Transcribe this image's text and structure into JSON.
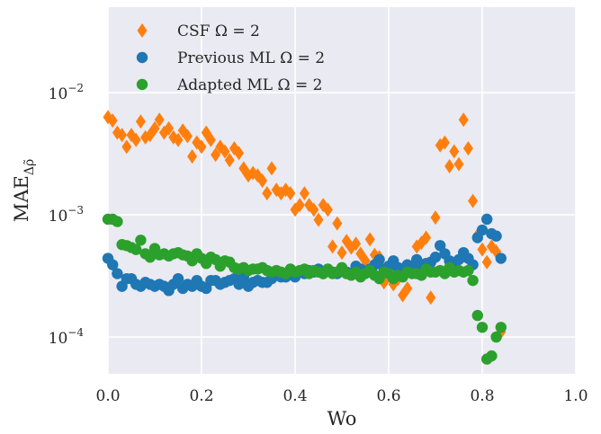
{
  "chart_data": {
    "type": "scatter",
    "xlabel": "Wo",
    "ylabel": "MAE",
    "ylabel_subscript": "Δρ̃",
    "xlim": [
      0,
      1.0
    ],
    "ylim": [
      5e-05,
      0.05
    ],
    "yscale": "log",
    "grid": true,
    "legend_position": "top-left",
    "x_ticks": [
      {
        "value": 0.0,
        "label": "0.0"
      },
      {
        "value": 0.2,
        "label": "0.2"
      },
      {
        "value": 0.4,
        "label": "0.4"
      },
      {
        "value": 0.6,
        "label": "0.6"
      },
      {
        "value": 0.8,
        "label": "0.8"
      },
      {
        "value": 1.0,
        "label": "1.0"
      }
    ],
    "y_ticks": [
      {
        "value": 0.01,
        "base": "10",
        "exp": "−2"
      },
      {
        "value": 0.001,
        "base": "10",
        "exp": "−3"
      },
      {
        "value": 0.0001,
        "base": "10",
        "exp": "−4"
      }
    ],
    "series": [
      {
        "name": "CSF Ω = 2",
        "marker": "diamond",
        "color": "#ff7f0e",
        "x": [
          0.0,
          0.01,
          0.02,
          0.03,
          0.04,
          0.05,
          0.06,
          0.07,
          0.08,
          0.09,
          0.1,
          0.11,
          0.12,
          0.13,
          0.14,
          0.15,
          0.16,
          0.17,
          0.18,
          0.19,
          0.2,
          0.21,
          0.22,
          0.23,
          0.24,
          0.25,
          0.26,
          0.27,
          0.28,
          0.29,
          0.3,
          0.31,
          0.32,
          0.33,
          0.34,
          0.35,
          0.36,
          0.37,
          0.38,
          0.39,
          0.4,
          0.41,
          0.42,
          0.43,
          0.44,
          0.45,
          0.46,
          0.47,
          0.48,
          0.49,
          0.5,
          0.51,
          0.52,
          0.53,
          0.54,
          0.55,
          0.56,
          0.57,
          0.58,
          0.59,
          0.6,
          0.61,
          0.62,
          0.63,
          0.64,
          0.65,
          0.66,
          0.67,
          0.68,
          0.69,
          0.7,
          0.71,
          0.72,
          0.73,
          0.74,
          0.75,
          0.76,
          0.77,
          0.78,
          0.79,
          0.8,
          0.81,
          0.82,
          0.83,
          0.84
        ],
        "y": [
          0.0063,
          0.0059,
          0.0047,
          0.0045,
          0.0036,
          0.0045,
          0.0041,
          0.0058,
          0.0043,
          0.0045,
          0.0051,
          0.006,
          0.0047,
          0.0051,
          0.0043,
          0.0041,
          0.0049,
          0.0044,
          0.003,
          0.0039,
          0.0036,
          0.0047,
          0.0041,
          0.0031,
          0.0036,
          0.0033,
          0.0028,
          0.0035,
          0.0032,
          0.0024,
          0.0021,
          0.0022,
          0.0021,
          0.0019,
          0.0015,
          0.0024,
          0.0016,
          0.0015,
          0.0016,
          0.0015,
          0.0011,
          0.0012,
          0.0015,
          0.0012,
          0.0011,
          0.00091,
          0.0012,
          0.0011,
          0.00055,
          0.00085,
          0.00049,
          0.00061,
          0.00054,
          0.00058,
          0.00048,
          0.00042,
          0.00063,
          0.00047,
          0.00045,
          0.00028,
          0.00032,
          0.00027,
          0.0003,
          0.00022,
          0.00025,
          0.00035,
          0.00055,
          0.00059,
          0.00065,
          0.00021,
          0.00095,
          0.0037,
          0.0039,
          0.0025,
          0.0033,
          0.0026,
          0.006,
          0.0035,
          0.0013,
          0.00068,
          0.00052,
          0.00041,
          0.00055,
          0.0005,
          0.00011
        ]
      },
      {
        "name": "Previous ML Ω = 2",
        "marker": "circle",
        "color": "#1f77b4",
        "x": [
          0.0,
          0.01,
          0.02,
          0.03,
          0.04,
          0.05,
          0.06,
          0.07,
          0.08,
          0.09,
          0.1,
          0.11,
          0.12,
          0.13,
          0.14,
          0.15,
          0.16,
          0.17,
          0.18,
          0.19,
          0.2,
          0.21,
          0.22,
          0.23,
          0.24,
          0.25,
          0.26,
          0.27,
          0.28,
          0.29,
          0.3,
          0.31,
          0.32,
          0.33,
          0.34,
          0.35,
          0.36,
          0.37,
          0.38,
          0.39,
          0.4,
          0.41,
          0.42,
          0.43,
          0.44,
          0.45,
          0.46,
          0.47,
          0.48,
          0.49,
          0.5,
          0.51,
          0.52,
          0.53,
          0.54,
          0.55,
          0.56,
          0.57,
          0.58,
          0.59,
          0.6,
          0.61,
          0.62,
          0.63,
          0.64,
          0.65,
          0.66,
          0.67,
          0.68,
          0.69,
          0.7,
          0.71,
          0.72,
          0.73,
          0.74,
          0.75,
          0.76,
          0.77,
          0.78,
          0.79,
          0.8,
          0.81,
          0.82,
          0.83,
          0.84
        ],
        "y": [
          0.00044,
          0.00039,
          0.00033,
          0.00026,
          0.0003,
          0.0003,
          0.00027,
          0.00026,
          0.00028,
          0.00027,
          0.00026,
          0.00027,
          0.00026,
          0.00024,
          0.00027,
          0.0003,
          0.00025,
          0.00027,
          0.00026,
          0.00029,
          0.00026,
          0.00025,
          0.00029,
          0.00029,
          0.00027,
          0.00028,
          0.00029,
          0.0003,
          0.00027,
          0.00031,
          0.00026,
          0.00028,
          0.00029,
          0.00028,
          0.00028,
          0.0003,
          0.00032,
          0.00031,
          0.00031,
          0.00033,
          0.00031,
          0.00034,
          0.00033,
          0.00035,
          0.00034,
          0.00036,
          0.00033,
          0.00035,
          0.00034,
          0.00033,
          0.00036,
          0.00034,
          0.00033,
          0.00038,
          0.00036,
          0.00034,
          0.00036,
          0.00039,
          0.00043,
          0.00036,
          0.00038,
          0.00042,
          0.00037,
          0.00036,
          0.00039,
          0.00038,
          0.00043,
          0.00039,
          0.0004,
          0.00041,
          0.00045,
          0.00056,
          0.00048,
          0.00042,
          0.00039,
          0.00043,
          0.00049,
          0.00044,
          0.00039,
          0.00065,
          0.00075,
          0.00092,
          0.0007,
          0.00067,
          0.00044
        ]
      },
      {
        "name": "Adapted ML Ω = 2",
        "marker": "circle",
        "color": "#2ca02c",
        "x": [
          0.0,
          0.01,
          0.02,
          0.03,
          0.04,
          0.05,
          0.06,
          0.07,
          0.08,
          0.09,
          0.1,
          0.11,
          0.12,
          0.13,
          0.14,
          0.15,
          0.16,
          0.17,
          0.18,
          0.19,
          0.2,
          0.21,
          0.22,
          0.23,
          0.24,
          0.25,
          0.26,
          0.27,
          0.28,
          0.29,
          0.3,
          0.31,
          0.32,
          0.33,
          0.34,
          0.35,
          0.36,
          0.37,
          0.38,
          0.39,
          0.4,
          0.41,
          0.42,
          0.43,
          0.44,
          0.45,
          0.46,
          0.47,
          0.48,
          0.49,
          0.5,
          0.51,
          0.52,
          0.53,
          0.54,
          0.55,
          0.56,
          0.57,
          0.58,
          0.59,
          0.6,
          0.61,
          0.62,
          0.63,
          0.64,
          0.65,
          0.66,
          0.67,
          0.68,
          0.69,
          0.7,
          0.71,
          0.72,
          0.73,
          0.74,
          0.75,
          0.76,
          0.77,
          0.78,
          0.79,
          0.8,
          0.81,
          0.82,
          0.83,
          0.84
        ],
        "y": [
          0.00092,
          0.00092,
          0.00088,
          0.00057,
          0.00056,
          0.00054,
          0.00052,
          0.00062,
          0.00048,
          0.00045,
          0.00053,
          0.00047,
          0.00048,
          0.00046,
          0.00048,
          0.00049,
          0.00047,
          0.00046,
          0.00042,
          0.00048,
          0.00044,
          0.0004,
          0.00045,
          0.00043,
          0.00038,
          0.00042,
          0.00041,
          0.00037,
          0.00036,
          0.00037,
          0.00035,
          0.00036,
          0.00036,
          0.00037,
          0.00035,
          0.00034,
          0.00035,
          0.00034,
          0.00033,
          0.00036,
          0.00034,
          0.00035,
          0.00036,
          0.00033,
          0.00035,
          0.00034,
          0.00033,
          0.00036,
          0.00033,
          0.00034,
          0.00037,
          0.00033,
          0.00032,
          0.00034,
          0.00031,
          0.00033,
          0.00035,
          0.00032,
          0.0003,
          0.00034,
          0.00033,
          0.0003,
          0.00032,
          0.00031,
          0.00034,
          0.00033,
          0.00033,
          0.00032,
          0.00036,
          0.00034,
          0.00034,
          0.00035,
          0.00033,
          0.00037,
          0.00034,
          0.00035,
          0.00034,
          0.00035,
          0.00029,
          0.00015,
          0.00012,
          6.6e-05,
          7e-05,
          0.0001,
          0.00012
        ]
      }
    ]
  }
}
